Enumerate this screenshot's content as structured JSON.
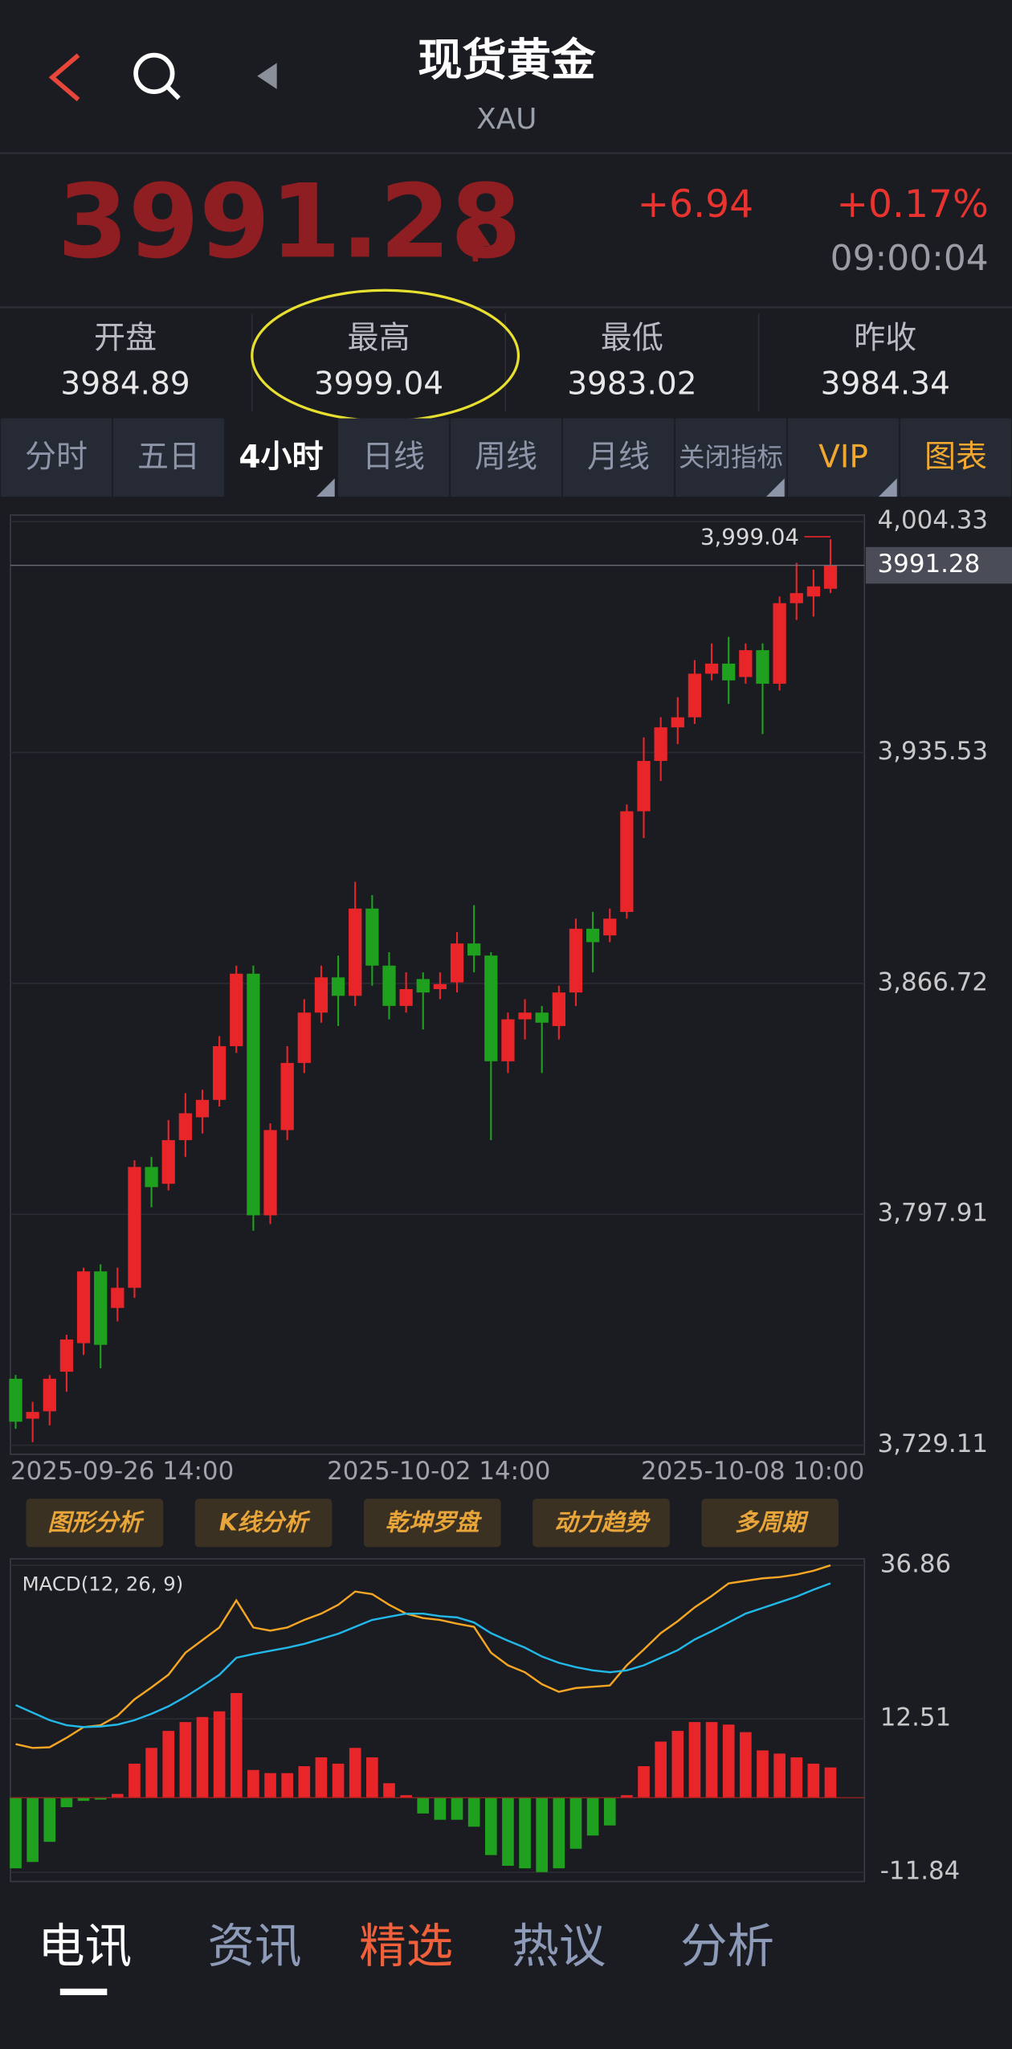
{
  "header": {
    "title": "现货黄金",
    "subtitle": "XAU"
  },
  "quote": {
    "price": "3991.28",
    "change": "+6.94",
    "change_pct": "+0.17%",
    "time": "09:00:04"
  },
  "stats": [
    {
      "label": "开盘",
      "value": "3984.89"
    },
    {
      "label": "最高",
      "value": "3999.04"
    },
    {
      "label": "最低",
      "value": "3983.02"
    },
    {
      "label": "昨收",
      "value": "3984.34"
    }
  ],
  "tabs": [
    "分时",
    "五日",
    "4小时",
    "日线",
    "周线",
    "月线",
    "关闭指标",
    "VIP",
    "图表"
  ],
  "tools": [
    "图形分析",
    "K线分析",
    "乾坤罗盘",
    "动力趋势",
    "多周期"
  ],
  "news_tabs": [
    "电讯",
    "资讯",
    "精选",
    "热议",
    "分析"
  ],
  "chart_data": [
    {
      "type": "candlestick",
      "x_tick_labels": [
        "2025-09-26 14:00",
        "2025-10-02 14:00",
        "2025-10-08 10:00"
      ],
      "open": [
        3748.9,
        3737,
        3739.2,
        3751,
        3759.5,
        3780.9,
        3770,
        3776,
        3812,
        3807,
        3820,
        3826.8,
        3832,
        3848,
        3869.6,
        3797.6,
        3823,
        3843,
        3858,
        3868.5,
        3863,
        3889,
        3872,
        3860,
        3868,
        3865,
        3867,
        3878.6,
        3875,
        3843.5,
        3856,
        3858,
        3854,
        3864,
        3883,
        3881,
        3888,
        3918,
        3933,
        3943,
        3946,
        3959,
        3962,
        3958,
        3966,
        3956,
        3980,
        3982,
        3984.3
      ],
      "high": [
        3750,
        3742,
        3750,
        3762,
        3782,
        3783,
        3782,
        3814,
        3815,
        3826,
        3834,
        3835,
        3851,
        3872,
        3872,
        3825,
        3848,
        3862,
        3872,
        3875,
        3897,
        3893,
        3876,
        3870,
        3870,
        3870,
        3882,
        3890,
        3876,
        3858,
        3862,
        3860,
        3866,
        3886,
        3888,
        3889,
        3920,
        3940,
        3946,
        3952,
        3963,
        3968,
        3970,
        3968,
        3968,
        3982,
        3992,
        3990,
        3999.04
      ],
      "low": [
        3734,
        3730,
        3735,
        3745,
        3756,
        3752,
        3766,
        3773,
        3800,
        3805,
        3815,
        3822,
        3830,
        3846,
        3793,
        3795,
        3820,
        3840,
        3855,
        3854,
        3860,
        3866,
        3856,
        3858,
        3853,
        3862,
        3864,
        3870,
        3820,
        3840,
        3850,
        3840,
        3850,
        3860,
        3870,
        3879,
        3886,
        3910,
        3927,
        3938,
        3944,
        3957,
        3950,
        3956,
        3941,
        3954,
        3975,
        3976,
        3983.02
      ],
      "close": [
        3736.1,
        3739,
        3748.9,
        3760.6,
        3780.9,
        3759,
        3776,
        3812,
        3806,
        3820,
        3828,
        3832,
        3848,
        3869.6,
        3797.6,
        3823,
        3843,
        3858,
        3868.5,
        3863,
        3889,
        3872,
        3860,
        3865,
        3864,
        3866.5,
        3878.6,
        3875,
        3843.5,
        3856,
        3858,
        3855,
        3864,
        3883,
        3879,
        3886,
        3918,
        3933,
        3943,
        3946,
        3959,
        3962,
        3957,
        3966,
        3956,
        3980,
        3983,
        3985,
        3991.28
      ],
      "up_color": "#e8262a",
      "down_color": "#1fa01f",
      "max_marker": {
        "value": 3999.04,
        "label": "3,999.04"
      },
      "ylim": [
        3729.11,
        4004.33
      ],
      "yticks": [
        {
          "value": 4004.33,
          "label": "4,004.33"
        },
        {
          "value": 3935.53,
          "label": "3,935.53"
        },
        {
          "value": 3866.72,
          "label": "3,866.72"
        },
        {
          "value": 3797.91,
          "label": "3,797.91"
        },
        {
          "value": 3729.11,
          "label": "3,729.11"
        }
      ],
      "grid": true
    },
    {
      "type": "macd",
      "title": "MACD(12, 26, 9)",
      "series": [
        {
          "color": "#f5a623",
          "values": [
            8.5,
            7.9,
            8.0,
            9.5,
            11.2,
            11.5,
            13.0,
            15.6,
            17.5,
            19.5,
            23.0,
            25.0,
            27.0,
            31.3,
            27.0,
            26.5,
            27.0,
            28.2,
            29.2,
            30.6,
            32.7,
            32.3,
            30.6,
            29.2,
            28.5,
            28.2,
            27.6,
            27.1,
            23.0,
            21.0,
            19.9,
            18.0,
            16.8,
            17.4,
            17.6,
            17.8,
            21.0,
            23.5,
            26.1,
            28.0,
            30.2,
            32.0,
            34.0,
            34.4,
            34.8,
            35.0,
            35.4,
            36.0,
            36.86
          ]
        },
        {
          "color": "#22b8e8",
          "values": [
            14.7,
            13.5,
            12.3,
            11.5,
            11.2,
            11.3,
            11.6,
            12.3,
            13.3,
            14.5,
            16.0,
            17.7,
            19.5,
            22.2,
            22.8,
            23.3,
            23.8,
            24.4,
            25.2,
            26.0,
            27.1,
            28.2,
            28.7,
            29.2,
            29.2,
            28.8,
            28.6,
            27.8,
            26.1,
            24.9,
            23.8,
            22.4,
            21.4,
            20.7,
            20.2,
            19.9,
            20.2,
            21.0,
            22.2,
            23.4,
            25.1,
            26.4,
            27.8,
            29.2,
            30.1,
            31.0,
            31.9,
            33.0,
            34.0
          ]
        }
      ],
      "histogram": {
        "up_color": "#e8262a",
        "down_color": "#1fa01f",
        "values": [
          -11.2,
          -10.2,
          -7.0,
          -1.5,
          -0.5,
          -0.3,
          0.6,
          5.4,
          7.9,
          10.6,
          12.0,
          12.8,
          13.7,
          16.6,
          4.4,
          3.9,
          3.9,
          5.0,
          6.4,
          5.4,
          7.9,
          6.4,
          2.3,
          0.4,
          -2.5,
          -3.5,
          -3.5,
          -4.6,
          -9.1,
          -10.8,
          -11.2,
          -11.8,
          -11.2,
          -8.1,
          -6.0,
          -4.4,
          0.4,
          5.0,
          8.9,
          10.6,
          12.0,
          12.0,
          11.6,
          10.4,
          7.5,
          7.0,
          6.4,
          5.4,
          4.8
        ]
      },
      "ylim": [
        -11.84,
        36.86
      ],
      "yticks": [
        36.86,
        12.51,
        -11.84
      ]
    }
  ]
}
